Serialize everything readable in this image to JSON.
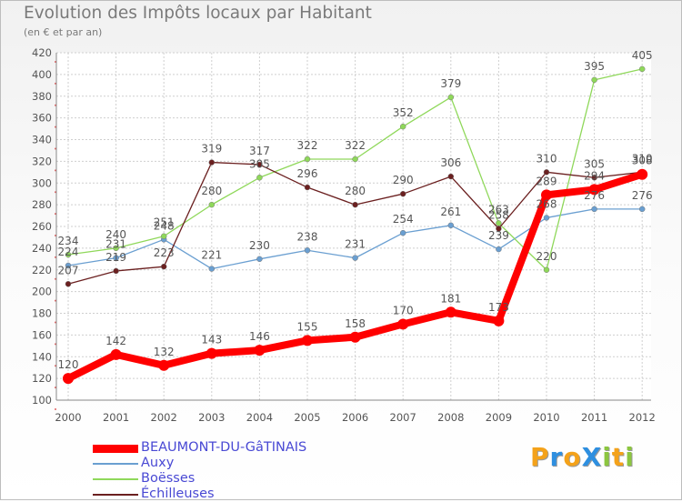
{
  "title": "Evolution des Impôts locaux par Habitant",
  "subtitle": "(en € et par an)",
  "brand": {
    "text": "ProXiti",
    "letters": [
      {
        "ch": "P",
        "color": "#f4a21a"
      },
      {
        "ch": "r",
        "color": "#2e8fe0"
      },
      {
        "ch": "o",
        "color": "#f4a21a"
      },
      {
        "ch": "X",
        "color": "#2e8fe0"
      },
      {
        "ch": "i",
        "color": "#8cc63f"
      },
      {
        "ch": "t",
        "color": "#f4a21a"
      },
      {
        "ch": "i",
        "color": "#8cc63f"
      }
    ]
  },
  "chart_data": {
    "type": "line",
    "title": "Evolution des Impôts locaux par Habitant",
    "subtitle": "(en € et par an)",
    "xlabel": "",
    "ylabel": "",
    "x": [
      2000,
      2001,
      2002,
      2003,
      2004,
      2005,
      2006,
      2007,
      2008,
      2009,
      2010,
      2011,
      2012
    ],
    "ylim": [
      100,
      420
    ],
    "yticks": [
      100,
      120,
      140,
      160,
      180,
      200,
      220,
      240,
      260,
      280,
      300,
      320,
      340,
      360,
      380,
      400,
      420
    ],
    "grid": true,
    "legend_position": "bottom-left",
    "series": [
      {
        "name": "BEAUMONT-DU-GâTINAIS",
        "color": "#ff0000",
        "values": [
          120,
          142,
          132,
          143,
          146,
          155,
          158,
          170,
          181,
          173,
          289,
          294,
          308
        ]
      },
      {
        "name": "Auxy",
        "color": "#6a9fd1",
        "values": [
          224,
          231,
          248,
          221,
          230,
          238,
          231,
          254,
          261,
          239,
          268,
          276,
          276
        ]
      },
      {
        "name": "Boësses",
        "color": "#8fd85a",
        "values": [
          234,
          240,
          251,
          280,
          305,
          322,
          322,
          352,
          379,
          263,
          220,
          395,
          405
        ]
      },
      {
        "name": "Échilleuses",
        "color": "#6b2020",
        "values": [
          207,
          219,
          223,
          319,
          317,
          296,
          280,
          290,
          306,
          258,
          310,
          305,
          310
        ]
      }
    ]
  }
}
